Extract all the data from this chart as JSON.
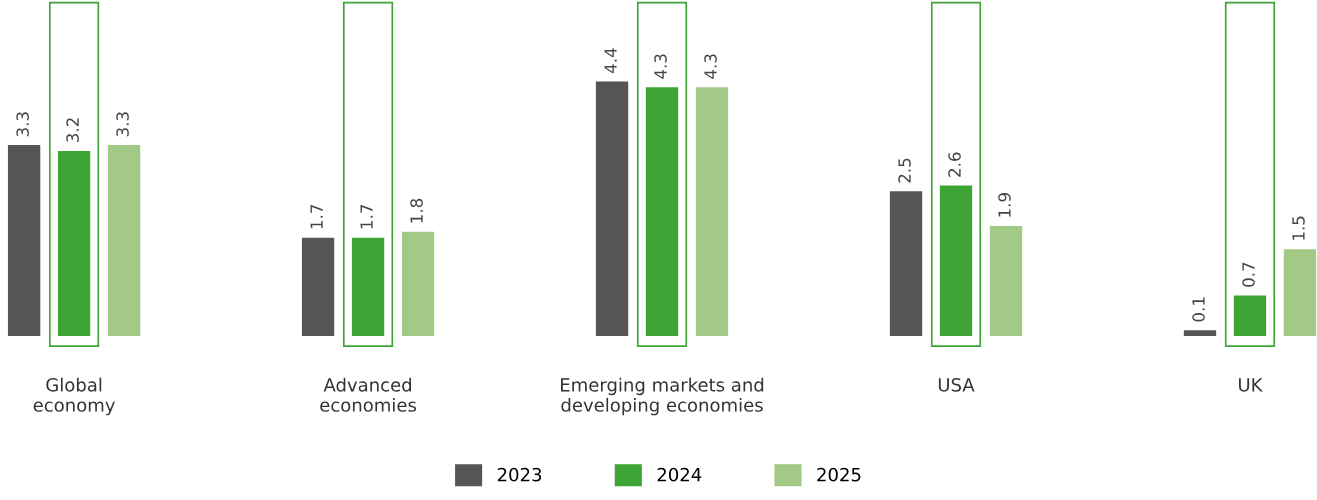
{
  "chart_data": {
    "type": "bar",
    "categories": [
      "Global\neconomy",
      "Advanced\neconomies",
      "Emerging markets and\ndeveloping economies",
      "USA",
      "UK"
    ],
    "series": [
      {
        "name": "2023",
        "color": "#555555",
        "values": [
          3.3,
          1.7,
          4.4,
          2.5,
          0.1
        ]
      },
      {
        "name": "2024",
        "color": "#3da435",
        "values": [
          3.2,
          1.7,
          4.3,
          2.6,
          0.7
        ]
      },
      {
        "name": "2025",
        "color": "#a3c986",
        "values": [
          3.3,
          1.8,
          4.3,
          1.9,
          1.5
        ]
      }
    ],
    "data_labels": true,
    "legend": "bottom",
    "grid": false
  }
}
